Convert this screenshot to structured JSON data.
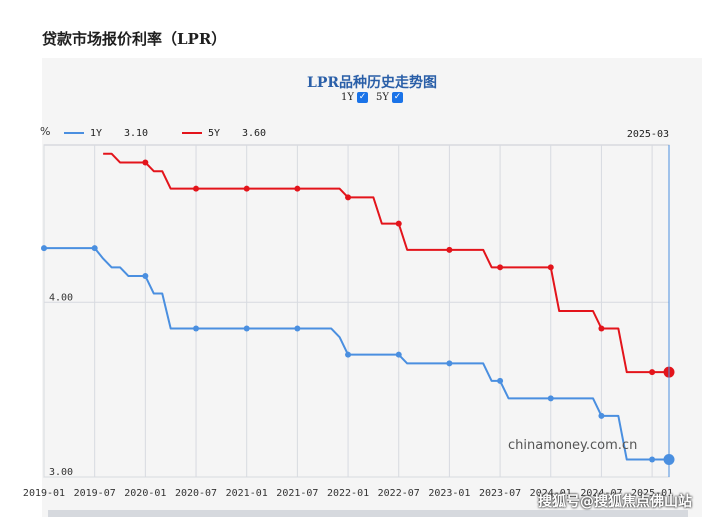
{
  "page": {
    "title": "贷款市场报价利率（LPR）",
    "watermark": "搜狐号@搜狐焦点佛山站"
  },
  "chart_data": {
    "type": "line",
    "title": "LPR品种历史走势图",
    "unit_label": "%",
    "toggles": [
      {
        "label": "1Y",
        "checked": true
      },
      {
        "label": "5Y",
        "checked": true
      }
    ],
    "legend": [
      {
        "name": "1Y",
        "value": "3.10",
        "color": "#4a8fe0"
      },
      {
        "name": "5Y",
        "value": "3.60",
        "color": "#e3141b"
      }
    ],
    "cursor_date": "2025-03",
    "source_text": "chinamoney.com.cn",
    "y_ticks": [
      "4.00",
      "3.00"
    ],
    "ylim": [
      3.0,
      4.9
    ],
    "xlim": [
      "2019-01",
      "2025-03"
    ],
    "x_ticks": [
      "2019-01",
      "2019-07",
      "2020-01",
      "2020-07",
      "2021-01",
      "2021-07",
      "2022-01",
      "2022-07",
      "2023-01",
      "2023-07",
      "2024-01",
      "2024-07",
      "2025-01"
    ],
    "grid": true,
    "series": [
      {
        "name": "1Y",
        "color": "#4a8fe0",
        "points": [
          [
            "2019-01",
            4.31
          ],
          [
            "2019-02",
            4.31
          ],
          [
            "2019-03",
            4.31
          ],
          [
            "2019-04",
            4.31
          ],
          [
            "2019-05",
            4.31
          ],
          [
            "2019-06",
            4.31
          ],
          [
            "2019-07",
            4.31
          ],
          [
            "2019-08",
            4.25
          ],
          [
            "2019-09",
            4.2
          ],
          [
            "2019-10",
            4.2
          ],
          [
            "2019-11",
            4.15
          ],
          [
            "2019-12",
            4.15
          ],
          [
            "2020-01",
            4.15
          ],
          [
            "2020-02",
            4.05
          ],
          [
            "2020-03",
            4.05
          ],
          [
            "2020-04",
            3.85
          ],
          [
            "2020-05",
            3.85
          ],
          [
            "2020-06",
            3.85
          ],
          [
            "2020-07",
            3.85
          ],
          [
            "2020-08",
            3.85
          ],
          [
            "2020-09",
            3.85
          ],
          [
            "2020-10",
            3.85
          ],
          [
            "2020-11",
            3.85
          ],
          [
            "2020-12",
            3.85
          ],
          [
            "2021-01",
            3.85
          ],
          [
            "2021-02",
            3.85
          ],
          [
            "2021-03",
            3.85
          ],
          [
            "2021-04",
            3.85
          ],
          [
            "2021-05",
            3.85
          ],
          [
            "2021-06",
            3.85
          ],
          [
            "2021-07",
            3.85
          ],
          [
            "2021-08",
            3.85
          ],
          [
            "2021-09",
            3.85
          ],
          [
            "2021-10",
            3.85
          ],
          [
            "2021-11",
            3.85
          ],
          [
            "2021-12",
            3.8
          ],
          [
            "2022-01",
            3.7
          ],
          [
            "2022-02",
            3.7
          ],
          [
            "2022-03",
            3.7
          ],
          [
            "2022-04",
            3.7
          ],
          [
            "2022-05",
            3.7
          ],
          [
            "2022-06",
            3.7
          ],
          [
            "2022-07",
            3.7
          ],
          [
            "2022-08",
            3.65
          ],
          [
            "2022-09",
            3.65
          ],
          [
            "2022-10",
            3.65
          ],
          [
            "2022-11",
            3.65
          ],
          [
            "2022-12",
            3.65
          ],
          [
            "2023-01",
            3.65
          ],
          [
            "2023-02",
            3.65
          ],
          [
            "2023-03",
            3.65
          ],
          [
            "2023-04",
            3.65
          ],
          [
            "2023-05",
            3.65
          ],
          [
            "2023-06",
            3.55
          ],
          [
            "2023-07",
            3.55
          ],
          [
            "2023-08",
            3.45
          ],
          [
            "2023-09",
            3.45
          ],
          [
            "2023-10",
            3.45
          ],
          [
            "2023-11",
            3.45
          ],
          [
            "2023-12",
            3.45
          ],
          [
            "2024-01",
            3.45
          ],
          [
            "2024-02",
            3.45
          ],
          [
            "2024-03",
            3.45
          ],
          [
            "2024-04",
            3.45
          ],
          [
            "2024-05",
            3.45
          ],
          [
            "2024-06",
            3.45
          ],
          [
            "2024-07",
            3.35
          ],
          [
            "2024-08",
            3.35
          ],
          [
            "2024-09",
            3.35
          ],
          [
            "2024-10",
            3.1
          ],
          [
            "2024-11",
            3.1
          ],
          [
            "2024-12",
            3.1
          ],
          [
            "2025-01",
            3.1
          ],
          [
            "2025-02",
            3.1
          ],
          [
            "2025-03",
            3.1
          ]
        ]
      },
      {
        "name": "5Y",
        "color": "#e3141b",
        "points": [
          [
            "2019-08",
            4.85
          ],
          [
            "2019-09",
            4.85
          ],
          [
            "2019-10",
            4.8
          ],
          [
            "2019-11",
            4.8
          ],
          [
            "2019-12",
            4.8
          ],
          [
            "2020-01",
            4.8
          ],
          [
            "2020-02",
            4.75
          ],
          [
            "2020-03",
            4.75
          ],
          [
            "2020-04",
            4.65
          ],
          [
            "2020-05",
            4.65
          ],
          [
            "2020-06",
            4.65
          ],
          [
            "2020-07",
            4.65
          ],
          [
            "2020-08",
            4.65
          ],
          [
            "2020-09",
            4.65
          ],
          [
            "2020-10",
            4.65
          ],
          [
            "2020-11",
            4.65
          ],
          [
            "2020-12",
            4.65
          ],
          [
            "2021-01",
            4.65
          ],
          [
            "2021-02",
            4.65
          ],
          [
            "2021-03",
            4.65
          ],
          [
            "2021-04",
            4.65
          ],
          [
            "2021-05",
            4.65
          ],
          [
            "2021-06",
            4.65
          ],
          [
            "2021-07",
            4.65
          ],
          [
            "2021-08",
            4.65
          ],
          [
            "2021-09",
            4.65
          ],
          [
            "2021-10",
            4.65
          ],
          [
            "2021-11",
            4.65
          ],
          [
            "2021-12",
            4.65
          ],
          [
            "2022-01",
            4.6
          ],
          [
            "2022-02",
            4.6
          ],
          [
            "2022-03",
            4.6
          ],
          [
            "2022-04",
            4.6
          ],
          [
            "2022-05",
            4.45
          ],
          [
            "2022-06",
            4.45
          ],
          [
            "2022-07",
            4.45
          ],
          [
            "2022-08",
            4.3
          ],
          [
            "2022-09",
            4.3
          ],
          [
            "2022-10",
            4.3
          ],
          [
            "2022-11",
            4.3
          ],
          [
            "2022-12",
            4.3
          ],
          [
            "2023-01",
            4.3
          ],
          [
            "2023-02",
            4.3
          ],
          [
            "2023-03",
            4.3
          ],
          [
            "2023-04",
            4.3
          ],
          [
            "2023-05",
            4.3
          ],
          [
            "2023-06",
            4.2
          ],
          [
            "2023-07",
            4.2
          ],
          [
            "2023-08",
            4.2
          ],
          [
            "2023-09",
            4.2
          ],
          [
            "2023-10",
            4.2
          ],
          [
            "2023-11",
            4.2
          ],
          [
            "2023-12",
            4.2
          ],
          [
            "2024-01",
            4.2
          ],
          [
            "2024-02",
            3.95
          ],
          [
            "2024-03",
            3.95
          ],
          [
            "2024-04",
            3.95
          ],
          [
            "2024-05",
            3.95
          ],
          [
            "2024-06",
            3.95
          ],
          [
            "2024-07",
            3.85
          ],
          [
            "2024-08",
            3.85
          ],
          [
            "2024-09",
            3.85
          ],
          [
            "2024-10",
            3.6
          ],
          [
            "2024-11",
            3.6
          ],
          [
            "2024-12",
            3.6
          ],
          [
            "2025-01",
            3.6
          ],
          [
            "2025-02",
            3.6
          ],
          [
            "2025-03",
            3.6
          ]
        ]
      }
    ]
  }
}
